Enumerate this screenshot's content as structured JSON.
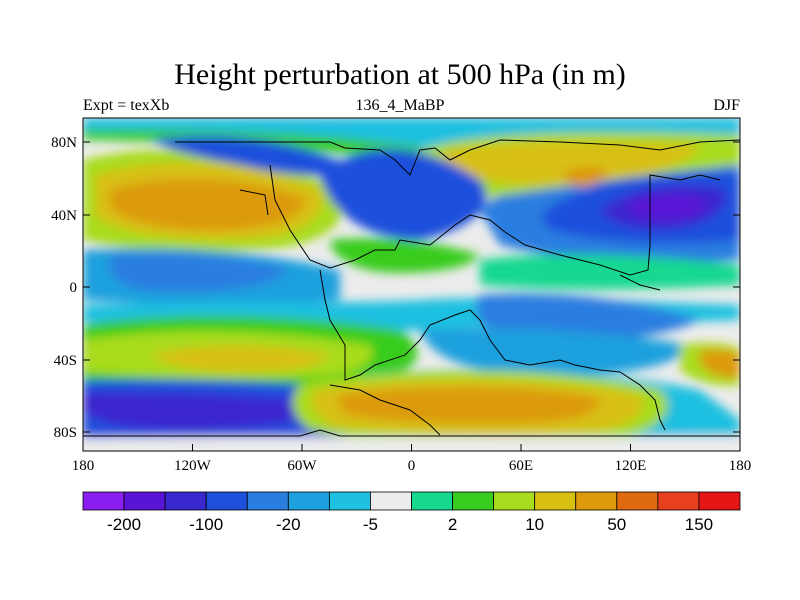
{
  "title": "Height perturbation at 500 hPa (in m)",
  "left_label": "Expt = texXb",
  "center_label": "136_4_MaBP",
  "right_label": "DJF",
  "map": {
    "x_ticks": [
      "180",
      "120W",
      "60W",
      "0",
      "60E",
      "120E",
      "180"
    ],
    "y_ticks": [
      "80N",
      "40N",
      "0",
      "40S",
      "80S"
    ]
  },
  "colorbar": {
    "colors": [
      "#8a1ef0",
      "#5a14d6",
      "#3a28cf",
      "#1e50dc",
      "#2a7ee0",
      "#1ea0de",
      "#1fc0e0",
      "#ececec",
      "#18d890",
      "#38cc1e",
      "#a8dc1e",
      "#d8c012",
      "#dc9a0c",
      "#e06a10",
      "#e8401e",
      "#e41616"
    ],
    "labels": [
      "-200",
      "-100",
      "-20",
      "-5",
      "2",
      "10",
      "50",
      "150"
    ]
  },
  "colors": {
    "background": "#ececec",
    "coast": "#000000"
  }
}
